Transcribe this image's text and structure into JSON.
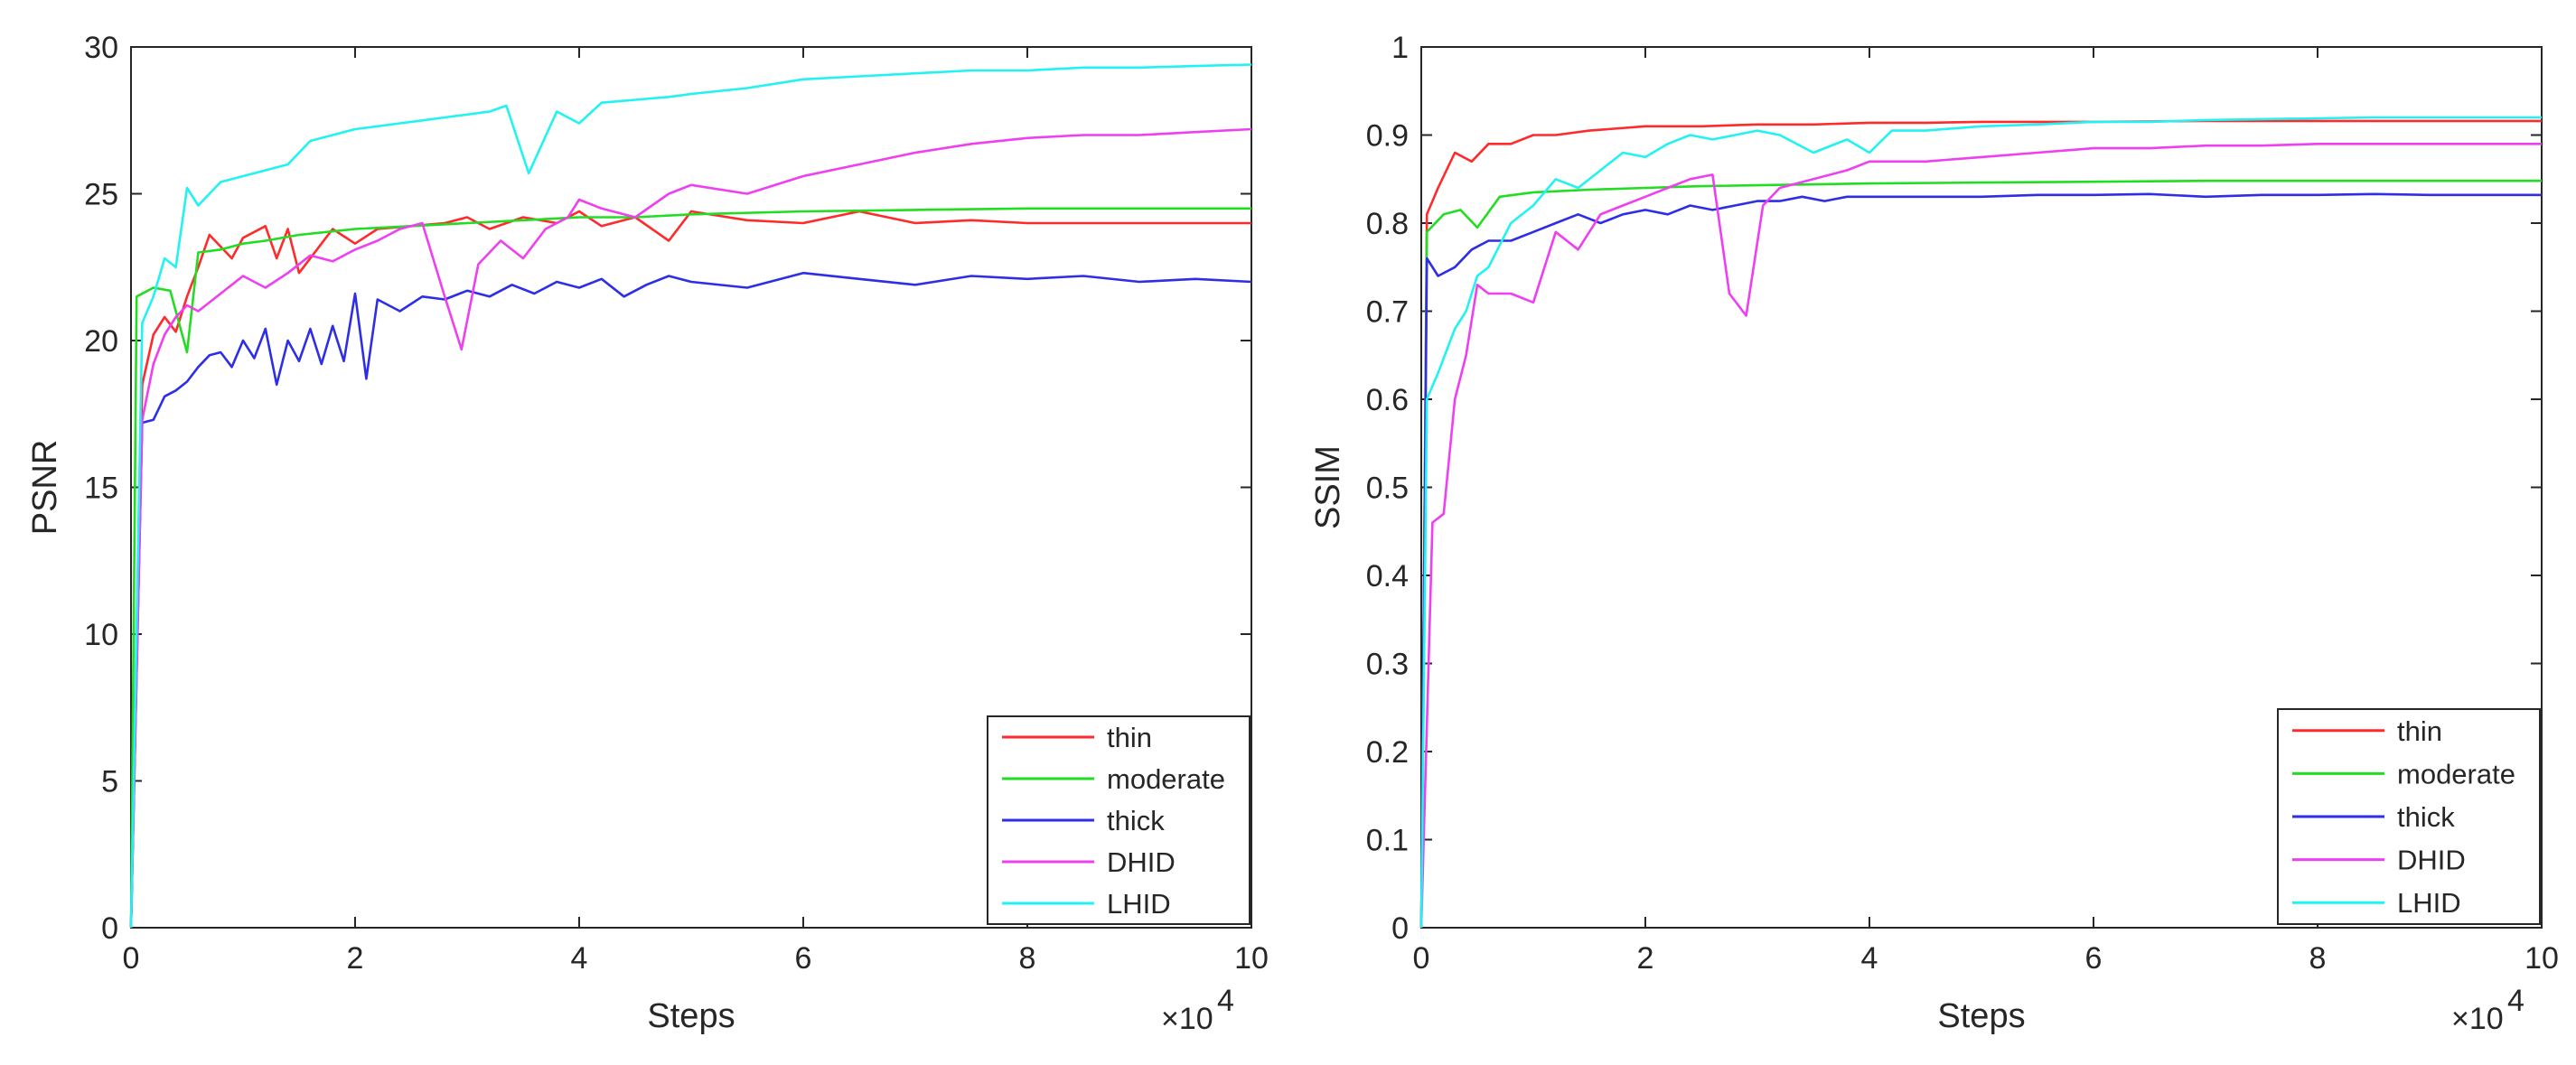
{
  "chart_data": [
    {
      "type": "line",
      "title": "",
      "xlabel": "Steps",
      "ylabel": "PSNR",
      "x_exponent_label": "×10",
      "x_exponent_power": "4",
      "xlim": [
        0,
        10
      ],
      "ylim": [
        0,
        30
      ],
      "xticks": [
        0,
        2,
        4,
        6,
        8,
        10
      ],
      "xtick_labels": [
        "0",
        "2",
        "4",
        "6",
        "8",
        "10"
      ],
      "yticks": [
        0,
        5,
        10,
        15,
        20,
        25,
        30
      ],
      "ytick_labels": [
        "0",
        "5",
        "10",
        "15",
        "20",
        "25",
        "30"
      ],
      "grid": false,
      "legend_position": "bottom-right",
      "series": [
        {
          "name": "thin",
          "color": "#ff2a2a",
          "x": [
            0,
            0.1,
            0.2,
            0.3,
            0.4,
            0.5,
            0.6,
            0.7,
            0.8,
            0.9,
            1.0,
            1.2,
            1.3,
            1.4,
            1.5,
            1.8,
            2.0,
            2.2,
            2.5,
            2.8,
            3.0,
            3.2,
            3.5,
            3.8,
            4.0,
            4.2,
            4.5,
            4.8,
            5.0,
            5.5,
            6.0,
            6.5,
            7.0,
            7.5,
            8.0,
            8.5,
            9.0,
            9.5,
            10.0
          ],
          "y": [
            0,
            18.5,
            20.2,
            20.8,
            20.3,
            21.5,
            22.5,
            23.6,
            23.2,
            22.8,
            23.5,
            23.9,
            22.8,
            23.8,
            22.3,
            23.8,
            23.3,
            23.8,
            23.9,
            24.0,
            24.2,
            23.8,
            24.2,
            24.0,
            24.4,
            23.9,
            24.2,
            23.4,
            24.4,
            24.1,
            24.0,
            24.4,
            24.0,
            24.1,
            24.0,
            24.0,
            24.0,
            24.0,
            24.0
          ]
        },
        {
          "name": "moderate",
          "color": "#22dd22",
          "x": [
            0,
            0.05,
            0.2,
            0.35,
            0.5,
            0.6,
            0.8,
            1.0,
            1.2,
            1.5,
            2.0,
            2.5,
            3.0,
            3.5,
            4.0,
            4.5,
            5.0,
            6.0,
            7.0,
            8.0,
            9.0,
            10.0
          ],
          "y": [
            0,
            21.5,
            21.8,
            21.7,
            19.6,
            23.0,
            23.1,
            23.3,
            23.4,
            23.6,
            23.8,
            23.9,
            24.0,
            24.1,
            24.2,
            24.2,
            24.3,
            24.4,
            24.45,
            24.5,
            24.5,
            24.5
          ]
        },
        {
          "name": "thick",
          "color": "#2e2ee6",
          "x": [
            0,
            0.1,
            0.2,
            0.3,
            0.4,
            0.5,
            0.6,
            0.7,
            0.8,
            0.9,
            1.0,
            1.1,
            1.2,
            1.3,
            1.4,
            1.5,
            1.6,
            1.7,
            1.8,
            1.9,
            2.0,
            2.1,
            2.2,
            2.4,
            2.6,
            2.8,
            3.0,
            3.2,
            3.4,
            3.6,
            3.8,
            4.0,
            4.2,
            4.4,
            4.6,
            4.8,
            5.0,
            5.5,
            6.0,
            6.5,
            7.0,
            7.5,
            8.0,
            8.5,
            9.0,
            9.5,
            10.0
          ],
          "y": [
            0,
            17.2,
            17.3,
            18.1,
            18.3,
            18.6,
            19.1,
            19.5,
            19.6,
            19.1,
            20.0,
            19.4,
            20.4,
            18.5,
            20.0,
            19.3,
            20.4,
            19.2,
            20.5,
            19.3,
            21.6,
            18.7,
            21.4,
            21.0,
            21.5,
            21.4,
            21.7,
            21.5,
            21.9,
            21.6,
            22.0,
            21.8,
            22.1,
            21.5,
            21.9,
            22.2,
            22.0,
            21.8,
            22.3,
            22.1,
            21.9,
            22.2,
            22.1,
            22.2,
            22.0,
            22.1,
            22.0
          ]
        },
        {
          "name": "DHID",
          "color": "#ee3ff0",
          "x": [
            0,
            0.1,
            0.2,
            0.3,
            0.4,
            0.5,
            0.6,
            0.8,
            1.0,
            1.2,
            1.4,
            1.6,
            1.8,
            2.0,
            2.2,
            2.4,
            2.6,
            2.8,
            2.95,
            3.1,
            3.3,
            3.5,
            3.7,
            3.9,
            4.0,
            4.2,
            4.5,
            4.8,
            5.0,
            5.5,
            6.0,
            6.5,
            7.0,
            7.5,
            8.0,
            8.5,
            9.0,
            9.5,
            10.0
          ],
          "y": [
            0,
            17.3,
            19.2,
            20.2,
            20.8,
            21.2,
            21.0,
            21.6,
            22.2,
            21.8,
            22.3,
            22.9,
            22.7,
            23.1,
            23.4,
            23.8,
            24.0,
            21.5,
            19.7,
            22.6,
            23.4,
            22.8,
            23.8,
            24.2,
            24.8,
            24.5,
            24.2,
            25.0,
            25.3,
            25.0,
            25.6,
            26.0,
            26.4,
            26.7,
            26.9,
            27.0,
            27.0,
            27.1,
            27.2
          ]
        },
        {
          "name": "LHID",
          "color": "#22f2f2",
          "x": [
            0,
            0.1,
            0.2,
            0.3,
            0.4,
            0.5,
            0.6,
            0.8,
            1.0,
            1.2,
            1.4,
            1.6,
            1.8,
            2.0,
            2.2,
            2.4,
            2.6,
            2.8,
            3.0,
            3.2,
            3.35,
            3.55,
            3.8,
            4.0,
            4.2,
            4.5,
            4.8,
            5.0,
            5.5,
            6.0,
            6.5,
            7.0,
            7.5,
            8.0,
            8.5,
            9.0,
            9.5,
            10.0
          ],
          "y": [
            0,
            20.6,
            21.5,
            22.8,
            22.5,
            25.2,
            24.6,
            25.4,
            25.6,
            25.8,
            26.0,
            26.8,
            27.0,
            27.2,
            27.3,
            27.4,
            27.5,
            27.6,
            27.7,
            27.8,
            28.0,
            25.7,
            27.8,
            27.4,
            28.1,
            28.2,
            28.3,
            28.4,
            28.6,
            28.9,
            29.0,
            29.1,
            29.2,
            29.2,
            29.3,
            29.3,
            29.35,
            29.4
          ]
        }
      ]
    },
    {
      "type": "line",
      "title": "",
      "xlabel": "Steps",
      "ylabel": "SSIM",
      "x_exponent_label": "×10",
      "x_exponent_power": "4",
      "xlim": [
        0,
        10
      ],
      "ylim": [
        0,
        1
      ],
      "xticks": [
        0,
        2,
        4,
        6,
        8,
        10
      ],
      "xtick_labels": [
        "0",
        "2",
        "4",
        "6",
        "8",
        "10"
      ],
      "yticks": [
        0,
        0.1,
        0.2,
        0.3,
        0.4,
        0.5,
        0.6,
        0.7,
        0.8,
        0.9,
        1
      ],
      "ytick_labels": [
        "0",
        "0.1",
        "0.2",
        "0.3",
        "0.4",
        "0.5",
        "0.6",
        "0.7",
        "0.8",
        "0.9",
        "1"
      ],
      "grid": false,
      "legend_position": "bottom-right",
      "series": [
        {
          "name": "thin",
          "color": "#ff2a2a",
          "x": [
            0,
            0.05,
            0.15,
            0.3,
            0.45,
            0.6,
            0.8,
            1.0,
            1.2,
            1.5,
            2.0,
            2.5,
            3.0,
            3.5,
            4.0,
            4.5,
            5.0,
            6.0,
            7.0,
            8.0,
            9.0,
            10.0
          ],
          "y": [
            0,
            0.81,
            0.84,
            0.88,
            0.87,
            0.89,
            0.89,
            0.9,
            0.9,
            0.905,
            0.91,
            0.91,
            0.912,
            0.912,
            0.914,
            0.914,
            0.915,
            0.915,
            0.916,
            0.916,
            0.916,
            0.916
          ]
        },
        {
          "name": "moderate",
          "color": "#22dd22",
          "x": [
            0,
            0.05,
            0.2,
            0.35,
            0.5,
            0.7,
            1.0,
            1.5,
            2.0,
            2.5,
            3.0,
            4.0,
            5.0,
            6.0,
            7.0,
            8.0,
            9.0,
            10.0
          ],
          "y": [
            0,
            0.79,
            0.81,
            0.815,
            0.795,
            0.83,
            0.835,
            0.838,
            0.84,
            0.842,
            0.843,
            0.845,
            0.846,
            0.847,
            0.848,
            0.848,
            0.848,
            0.848
          ]
        },
        {
          "name": "thick",
          "color": "#2e2ee6",
          "x": [
            0,
            0.05,
            0.15,
            0.3,
            0.45,
            0.6,
            0.8,
            1.0,
            1.2,
            1.4,
            1.6,
            1.8,
            2.0,
            2.2,
            2.4,
            2.6,
            2.8,
            3.0,
            3.2,
            3.4,
            3.6,
            3.8,
            4.0,
            4.5,
            5.0,
            5.5,
            6.0,
            6.5,
            7.0,
            7.5,
            8.0,
            8.5,
            9.0,
            9.5,
            10.0
          ],
          "y": [
            0,
            0.76,
            0.74,
            0.75,
            0.77,
            0.78,
            0.78,
            0.79,
            0.8,
            0.81,
            0.8,
            0.81,
            0.815,
            0.81,
            0.82,
            0.815,
            0.82,
            0.825,
            0.825,
            0.83,
            0.825,
            0.83,
            0.83,
            0.83,
            0.83,
            0.832,
            0.832,
            0.833,
            0.83,
            0.832,
            0.832,
            0.833,
            0.832,
            0.832,
            0.832
          ]
        },
        {
          "name": "DHID",
          "color": "#ee3ff0",
          "x": [
            0,
            0.1,
            0.2,
            0.3,
            0.4,
            0.5,
            0.6,
            0.8,
            1.0,
            1.2,
            1.4,
            1.6,
            1.8,
            2.0,
            2.2,
            2.4,
            2.6,
            2.75,
            2.9,
            3.05,
            3.2,
            3.5,
            3.8,
            4.0,
            4.5,
            5.0,
            5.5,
            6.0,
            6.5,
            7.0,
            7.5,
            8.0,
            8.5,
            9.0,
            9.5,
            10.0
          ],
          "y": [
            0,
            0.46,
            0.47,
            0.6,
            0.65,
            0.73,
            0.72,
            0.72,
            0.71,
            0.79,
            0.77,
            0.81,
            0.82,
            0.83,
            0.84,
            0.85,
            0.855,
            0.72,
            0.695,
            0.82,
            0.84,
            0.85,
            0.86,
            0.87,
            0.87,
            0.875,
            0.88,
            0.885,
            0.885,
            0.888,
            0.888,
            0.89,
            0.89,
            0.89,
            0.89,
            0.89
          ]
        },
        {
          "name": "LHID",
          "color": "#22f2f2",
          "x": [
            0,
            0.05,
            0.15,
            0.3,
            0.4,
            0.5,
            0.6,
            0.8,
            1.0,
            1.2,
            1.4,
            1.6,
            1.8,
            2.0,
            2.2,
            2.4,
            2.6,
            2.8,
            3.0,
            3.2,
            3.5,
            3.8,
            4.0,
            4.2,
            4.5,
            5.0,
            5.5,
            6.0,
            6.5,
            7.0,
            7.5,
            8.0,
            8.5,
            9.0,
            9.5,
            10.0
          ],
          "y": [
            0,
            0.6,
            0.63,
            0.68,
            0.7,
            0.74,
            0.75,
            0.8,
            0.82,
            0.85,
            0.84,
            0.86,
            0.88,
            0.875,
            0.89,
            0.9,
            0.895,
            0.9,
            0.905,
            0.9,
            0.88,
            0.895,
            0.88,
            0.905,
            0.905,
            0.91,
            0.912,
            0.915,
            0.915,
            0.917,
            0.918,
            0.919,
            0.92,
            0.92,
            0.92,
            0.92
          ]
        }
      ]
    }
  ]
}
